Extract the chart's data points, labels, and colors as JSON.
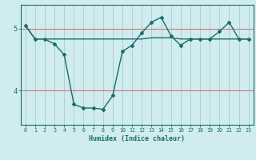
{
  "xlabel": "Humidex (Indice chaleur)",
  "x_values": [
    0,
    1,
    2,
    3,
    4,
    5,
    6,
    7,
    8,
    9,
    10,
    11,
    12,
    13,
    14,
    15,
    16,
    17,
    18,
    19,
    20,
    21,
    22,
    23
  ],
  "line1_y": [
    5.05,
    4.83,
    4.83,
    4.83,
    4.83,
    4.83,
    4.83,
    4.83,
    4.83,
    4.83,
    4.83,
    4.83,
    4.83,
    4.85,
    4.85,
    4.85,
    4.83,
    4.83,
    4.83,
    4.83,
    4.83,
    4.83,
    4.83,
    4.83
  ],
  "line2_y": [
    5.05,
    4.83,
    4.83,
    4.75,
    4.58,
    3.78,
    3.72,
    3.72,
    3.7,
    3.92,
    4.63,
    4.73,
    4.93,
    5.1,
    5.18,
    4.88,
    4.73,
    4.83,
    4.83,
    4.83,
    4.95,
    5.1,
    4.83,
    4.83
  ],
  "line_color": "#1a6b6b",
  "bg_color": "#d0ecee",
  "grid_color_x": "#a8cccc",
  "grid_color_y": "#cc7777",
  "ylim": [
    3.45,
    5.38
  ],
  "yticks": [
    4,
    5
  ],
  "xlim": [
    -0.5,
    23.5
  ]
}
